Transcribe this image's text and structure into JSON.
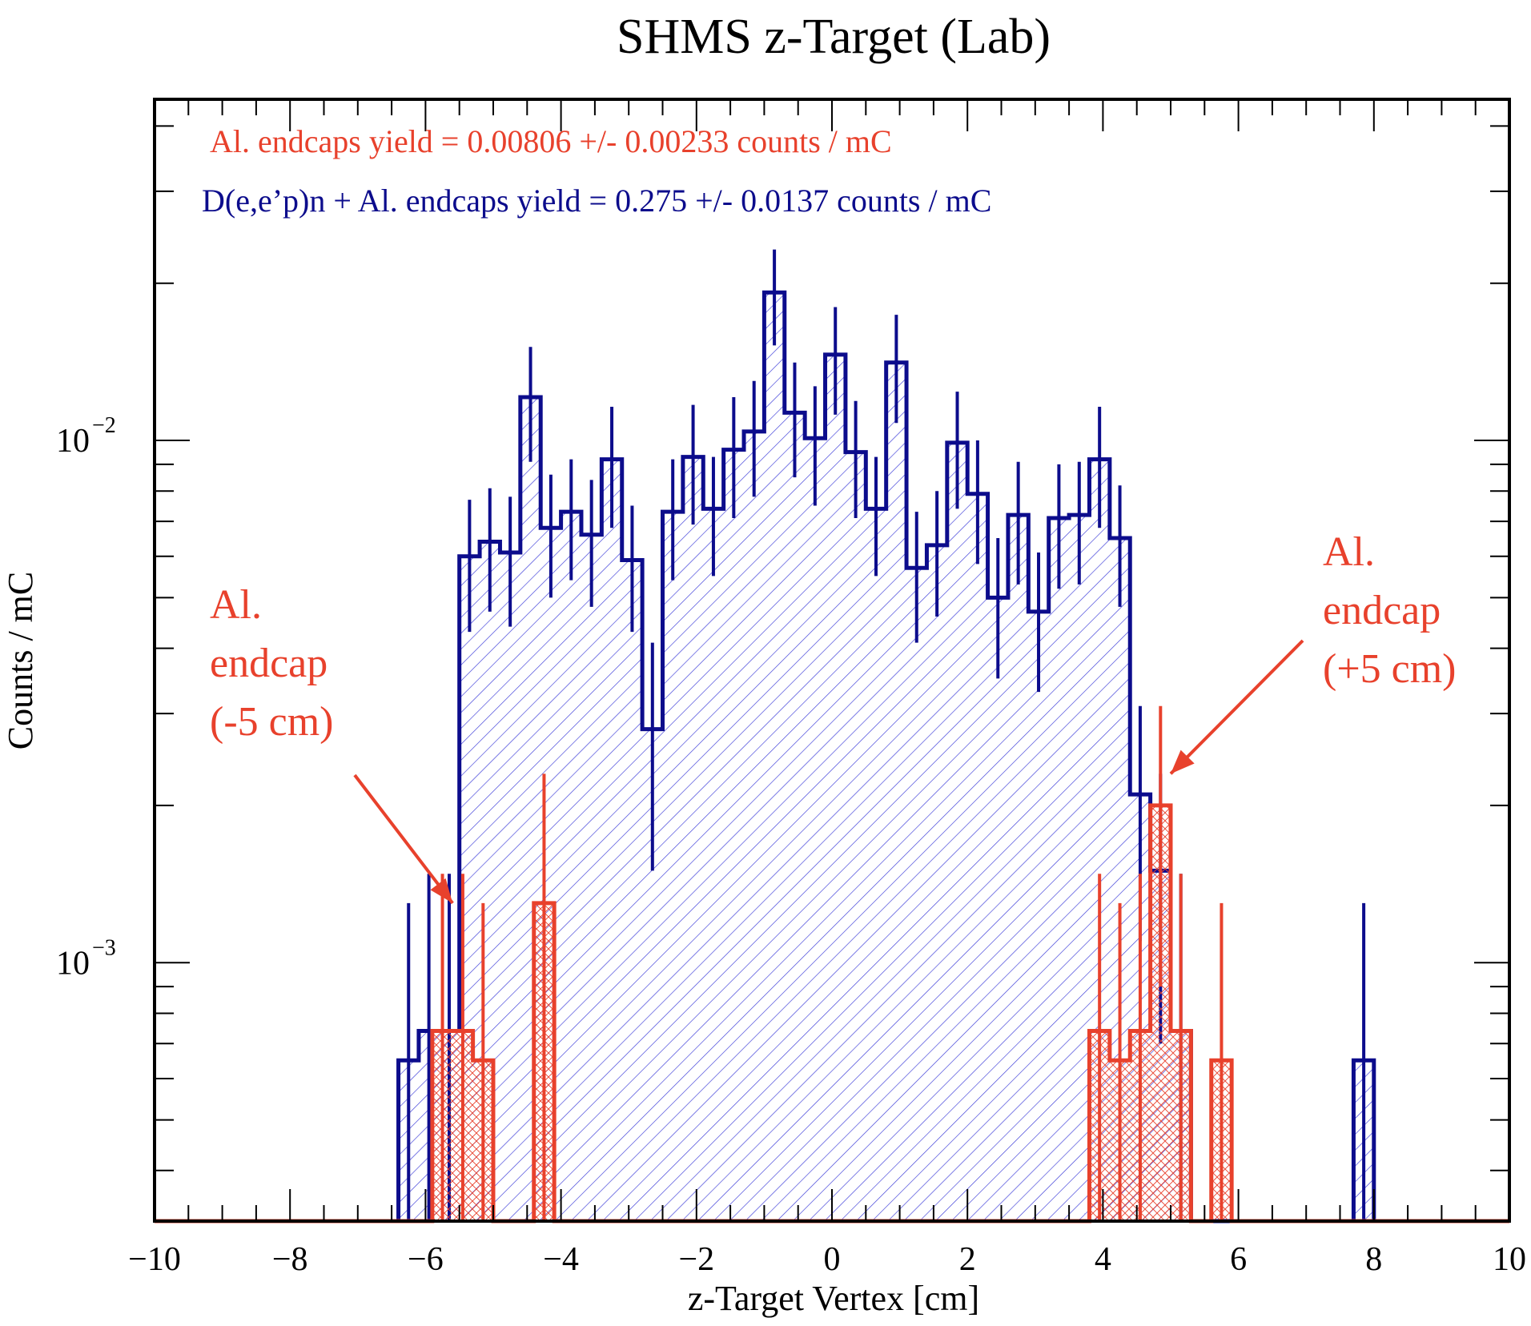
{
  "chart_data": {
    "type": "bar",
    "title": "SHMS z-Target (Lab)",
    "xlabel": "z-Target Vertex [cm]",
    "ylabel": "Counts / mC",
    "xlim": [
      -10,
      10
    ],
    "ylim": [
      0.00032,
      0.045
    ],
    "yscale": "log",
    "bin_width": 0.3,
    "x_ticks": [
      "−10",
      "−8",
      "−6",
      "−4",
      "−2",
      "0",
      "2",
      "4",
      "6",
      "8",
      "10"
    ],
    "y_ticks": [
      {
        "base": "10",
        "exp": "−2",
        "value": 0.01
      },
      {
        "base": "10",
        "exp": "−3",
        "value": 0.001
      }
    ],
    "grid": false,
    "series": [
      {
        "key": "total",
        "color": "#0c0c8c",
        "hatch": "single",
        "bins": [
          {
            "x": -6.25,
            "y": 0.00065,
            "err": 0.00065
          },
          {
            "x": -5.95,
            "y": 0.00074,
            "err": 0.00074
          },
          {
            "x": -5.65,
            "y": 0.00074,
            "err": 0.00074
          },
          {
            "x": -5.35,
            "y": 0.006,
            "err": 0.0017
          },
          {
            "x": -5.05,
            "y": 0.0064,
            "err": 0.0017
          },
          {
            "x": -4.75,
            "y": 0.0061,
            "err": 0.0017
          },
          {
            "x": -4.45,
            "y": 0.0121,
            "err": 0.003
          },
          {
            "x": -4.15,
            "y": 0.0068,
            "err": 0.0018
          },
          {
            "x": -3.85,
            "y": 0.0073,
            "err": 0.0019
          },
          {
            "x": -3.55,
            "y": 0.0066,
            "err": 0.0018
          },
          {
            "x": -3.25,
            "y": 0.0092,
            "err": 0.0024
          },
          {
            "x": -2.95,
            "y": 0.0059,
            "err": 0.0016
          },
          {
            "x": -2.65,
            "y": 0.0028,
            "err": 0.0013
          },
          {
            "x": -2.35,
            "y": 0.0073,
            "err": 0.0019
          },
          {
            "x": -2.05,
            "y": 0.0093,
            "err": 0.0024
          },
          {
            "x": -1.75,
            "y": 0.0074,
            "err": 0.0019
          },
          {
            "x": -1.45,
            "y": 0.0096,
            "err": 0.0025
          },
          {
            "x": -1.15,
            "y": 0.0104,
            "err": 0.0026
          },
          {
            "x": -0.85,
            "y": 0.0192,
            "err": 0.004
          },
          {
            "x": -0.55,
            "y": 0.0113,
            "err": 0.0028
          },
          {
            "x": -0.25,
            "y": 0.0101,
            "err": 0.0026
          },
          {
            "x": 0.05,
            "y": 0.0146,
            "err": 0.0034
          },
          {
            "x": 0.35,
            "y": 0.0095,
            "err": 0.0024
          },
          {
            "x": 0.65,
            "y": 0.0074,
            "err": 0.0019
          },
          {
            "x": 0.95,
            "y": 0.0141,
            "err": 0.0033
          },
          {
            "x": 1.25,
            "y": 0.0057,
            "err": 0.0016
          },
          {
            "x": 1.55,
            "y": 0.0063,
            "err": 0.0017
          },
          {
            "x": 1.85,
            "y": 0.0099,
            "err": 0.0025
          },
          {
            "x": 2.15,
            "y": 0.0079,
            "err": 0.0021
          },
          {
            "x": 2.45,
            "y": 0.005,
            "err": 0.0015
          },
          {
            "x": 2.75,
            "y": 0.0072,
            "err": 0.0019
          },
          {
            "x": 3.05,
            "y": 0.0047,
            "err": 0.0014
          },
          {
            "x": 3.35,
            "y": 0.0071,
            "err": 0.0019
          },
          {
            "x": 3.65,
            "y": 0.0072,
            "err": 0.0019
          },
          {
            "x": 3.95,
            "y": 0.0092,
            "err": 0.0024
          },
          {
            "x": 4.25,
            "y": 0.0065,
            "err": 0.0017
          },
          {
            "x": 4.55,
            "y": 0.0021,
            "err": 0.001
          },
          {
            "x": 4.85,
            "y": 0.0015,
            "err": 0.0008
          },
          {
            "x": 5.15,
            "y": 0.00074,
            "err": 0.00074
          },
          {
            "x": 7.85,
            "y": 0.00065,
            "err": 0.00065
          }
        ]
      },
      {
        "key": "endcaps",
        "color": "#e8412c",
        "hatch": "cross",
        "bins": [
          {
            "x": -5.75,
            "y": 0.00074,
            "err": 0.00074
          },
          {
            "x": -5.45,
            "y": 0.00074,
            "err": 0.00074
          },
          {
            "x": -5.15,
            "y": 0.00065,
            "err": 0.00065
          },
          {
            "x": -4.25,
            "y": 0.0013,
            "err": 0.001
          },
          {
            "x": 3.95,
            "y": 0.00074,
            "err": 0.00074
          },
          {
            "x": 4.25,
            "y": 0.00065,
            "err": 0.00065
          },
          {
            "x": 4.55,
            "y": 0.00074,
            "err": 0.00074
          },
          {
            "x": 4.85,
            "y": 0.002,
            "err": 0.0011
          },
          {
            "x": 5.15,
            "y": 0.00074,
            "err": 0.00074
          },
          {
            "x": 5.75,
            "y": 0.00065,
            "err": 0.00065
          }
        ]
      }
    ],
    "annotations": [
      {
        "key": "endcaps_yield",
        "text": "Al. endcaps yield =  0.00806 +/- 0.00233 counts / mC",
        "color": "#e8412c"
      },
      {
        "key": "total_yield",
        "text": "D(e,e’p)n + Al. endcaps yield =  0.275 +/- 0.0137 counts / mC",
        "color": "#0c0c8c"
      },
      {
        "key": "left_endcap",
        "lines": [
          "Al.",
          "endcap",
          "(-5 cm)"
        ],
        "color": "#e8412c",
        "arrow_to": {
          "x": -5.6,
          "y": 0.0013
        }
      },
      {
        "key": "right_endcap",
        "lines": [
          "Al.",
          "endcap",
          "(+5 cm)"
        ],
        "color": "#e8412c",
        "arrow_to": {
          "x": 5.0,
          "y": 0.0023
        }
      }
    ]
  }
}
